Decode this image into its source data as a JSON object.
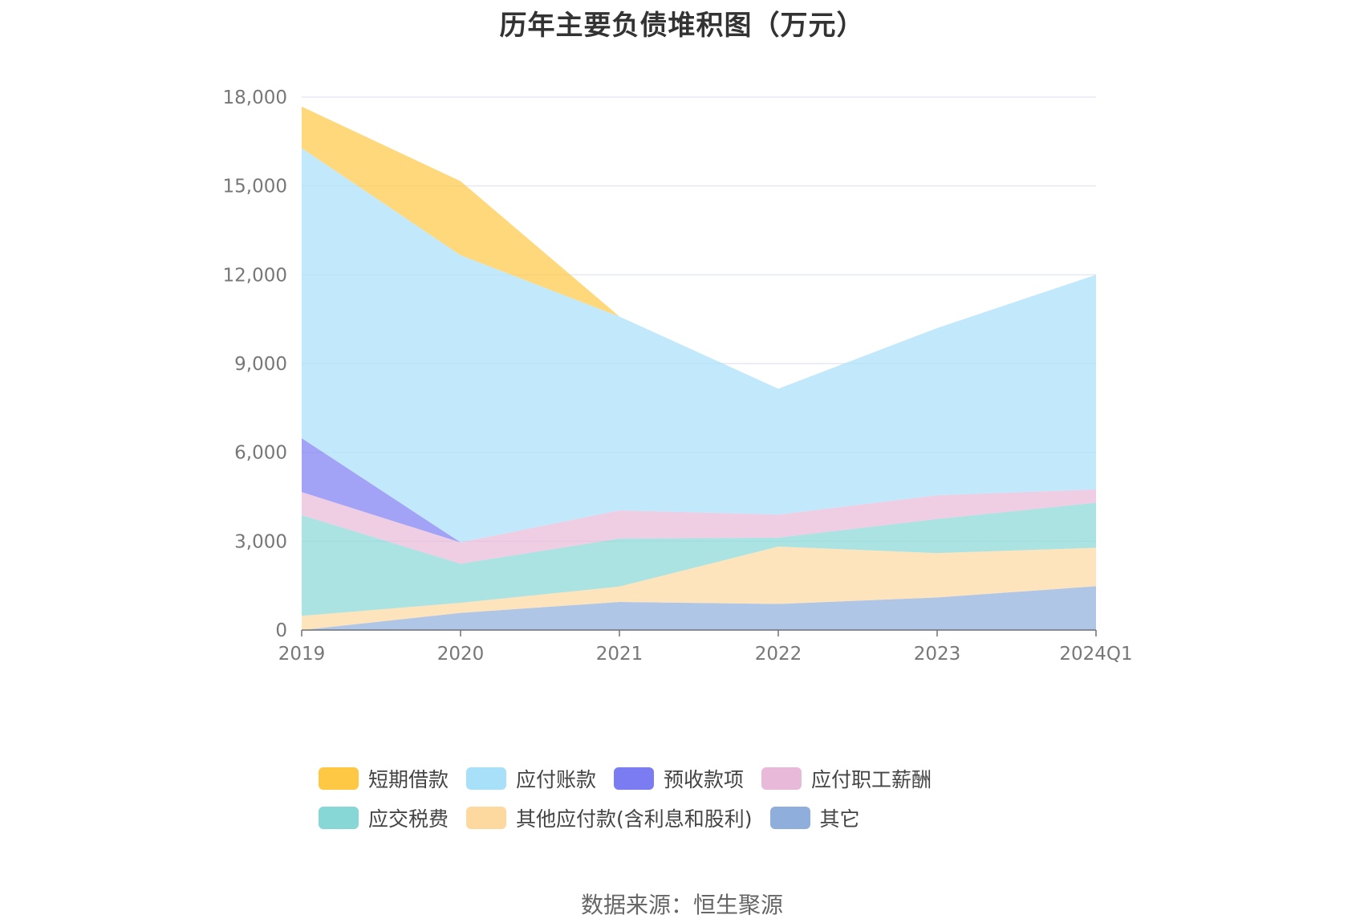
{
  "chart_data": {
    "type": "area",
    "stacked": true,
    "title": "历年主要负债堆积图（万元）",
    "categories": [
      "2019",
      "2020",
      "2021",
      "2022",
      "2023",
      "2024Q1"
    ],
    "ylim": [
      0,
      18000
    ],
    "yticks": [
      "0",
      "3,000",
      "6,000",
      "9,000",
      "12,000",
      "15,000",
      "18,000"
    ],
    "ytick_values": [
      0,
      3000,
      6000,
      9000,
      12000,
      15000,
      18000
    ],
    "grid": true,
    "legend_position": "bottom",
    "series": [
      {
        "name": "其它",
        "color": "#8faedc",
        "values": [
          0,
          580,
          950,
          880,
          1100,
          1480
        ]
      },
      {
        "name": "其他应付款(含利息和股利)",
        "color": "#fdd9a0",
        "values": [
          480,
          340,
          520,
          1940,
          1500,
          1300
        ]
      },
      {
        "name": "应交税费",
        "color": "#86d7d6",
        "values": [
          3400,
          1320,
          1620,
          300,
          1150,
          1520
        ]
      },
      {
        "name": "应付职工薪酬",
        "color": "#e8b9d8",
        "values": [
          780,
          720,
          950,
          780,
          800,
          450
        ]
      },
      {
        "name": "预收款项",
        "color": "#7b7cf2",
        "values": [
          1820,
          0,
          0,
          0,
          0,
          0
        ]
      },
      {
        "name": "应付账款",
        "color": "#a8e0fa",
        "values": [
          9800,
          9700,
          6550,
          4250,
          5650,
          7250
        ]
      },
      {
        "name": "短期借款",
        "color": "#ffc844",
        "values": [
          1400,
          2500,
          0,
          0,
          0,
          0
        ]
      }
    ],
    "legend_order": [
      "短期借款",
      "应付账款",
      "预收款项",
      "应付职工薪酬",
      "应交税费",
      "其他应付款(含利息和股利)",
      "其它"
    ]
  },
  "source_text": "数据来源：恒生聚源"
}
